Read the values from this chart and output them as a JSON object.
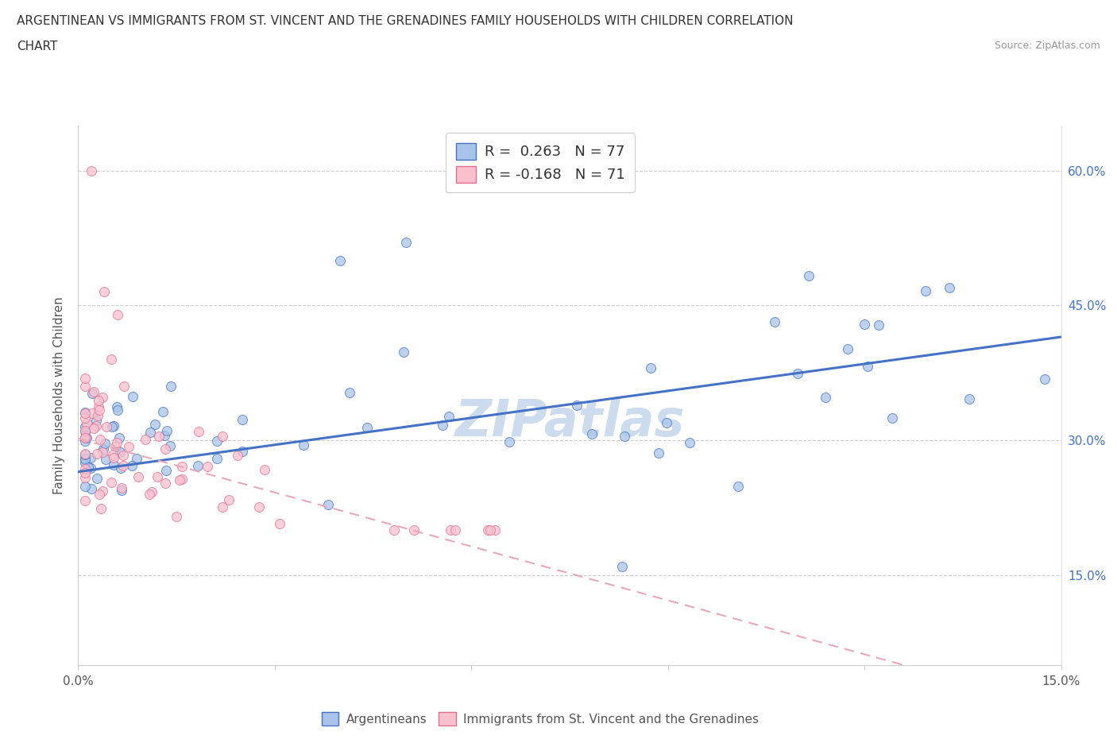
{
  "title_line1": "ARGENTINEAN VS IMMIGRANTS FROM ST. VINCENT AND THE GRENADINES FAMILY HOUSEHOLDS WITH CHILDREN CORRELATION",
  "title_line2": "CHART",
  "source": "Source: ZipAtlas.com",
  "ylabel": "Family Households with Children",
  "xlim": [
    0.0,
    0.15
  ],
  "ylim": [
    0.05,
    0.65
  ],
  "x_tick_pos": [
    0.0,
    0.03,
    0.06,
    0.09,
    0.12,
    0.15
  ],
  "x_tick_labels": [
    "0.0%",
    "",
    "",
    "",
    "",
    "15.0%"
  ],
  "y_tick_pos": [
    0.15,
    0.3,
    0.45,
    0.6
  ],
  "y_tick_labels": [
    "15.0%",
    "30.0%",
    "45.0%",
    "60.0%"
  ],
  "r_argentinean": 0.263,
  "n_argentinean": 77,
  "r_svg": -0.168,
  "n_svg": 71,
  "color_argentinean_fill": "#a8c4e8",
  "color_argentinean_edge": "#4472c4",
  "color_svg_fill": "#f9c0ce",
  "color_svg_edge": "#e07090",
  "color_line_argentinean": "#4472c4",
  "color_line_svg": "#e8a8b8",
  "watermark_color": "#ccdcee",
  "legend_R_color": "#4472c4",
  "legend_N_color": "#4472c4",
  "bottom_label_arg": "Argentineans",
  "bottom_label_svg": "Immigrants from St. Vincent and the Grenadines"
}
